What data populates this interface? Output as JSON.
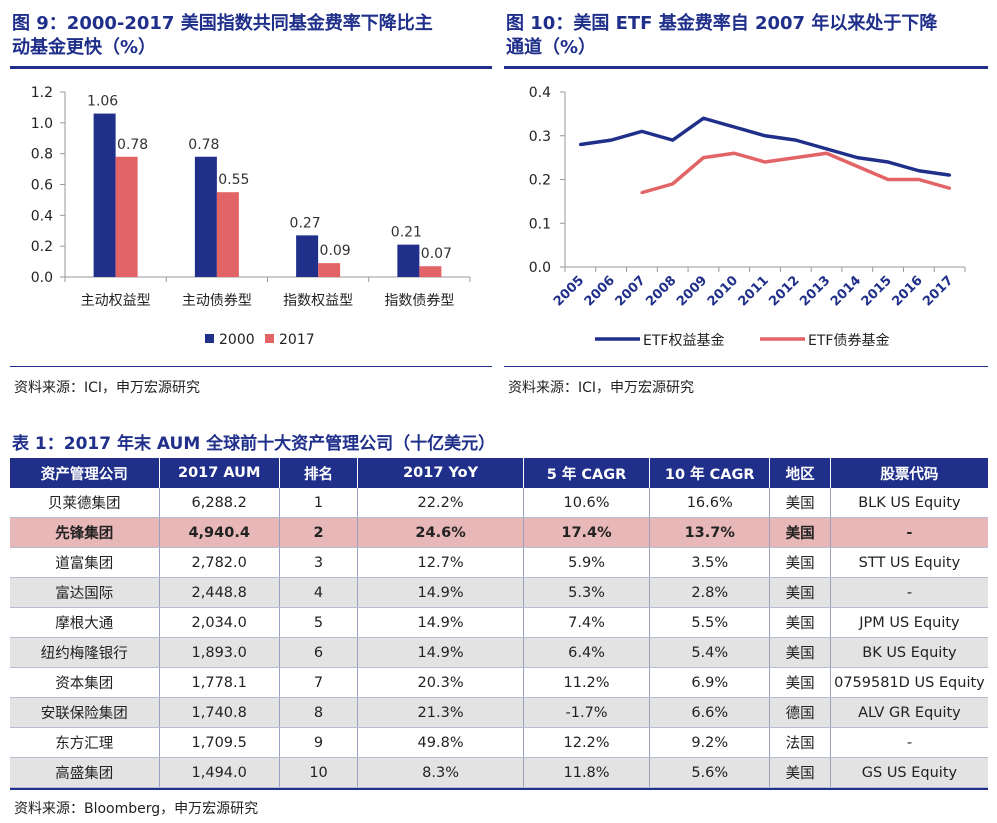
{
  "fig9": {
    "title_line1": "图 9：2000-2017 美国指数共同基金费率下降比主",
    "title_line2": "动基金更快（%）",
    "source": "资料来源：ICI，申万宏源研究"
  },
  "fig10": {
    "title_line1": "图 10：美国 ETF 基金费率自 2007 年以来处于下降",
    "title_line2": "通道（%）",
    "source": "资料来源：ICI，申万宏源研究"
  },
  "chart_data": [
    {
      "type": "bar",
      "categories": [
        "主动权益型",
        "主动债券型",
        "指数权益型",
        "指数债券型"
      ],
      "series": [
        {
          "name": "2000",
          "values": [
            1.06,
            0.78,
            0.27,
            0.21
          ],
          "color": "#1f2f8a"
        },
        {
          "name": "2017",
          "values": [
            0.78,
            0.55,
            0.09,
            0.07
          ],
          "color": "#e36466"
        }
      ],
      "ylim": [
        0,
        1.2
      ],
      "yticks": [
        "0.0",
        "0.2",
        "0.4",
        "0.6",
        "0.8",
        "1.0",
        "1.2"
      ],
      "legend": "bottom",
      "grid": false
    },
    {
      "type": "line",
      "x": [
        "2005",
        "2006",
        "2007",
        "2008",
        "2009",
        "2010",
        "2011",
        "2012",
        "2013",
        "2014",
        "2015",
        "2016",
        "2017"
      ],
      "series": [
        {
          "name": "ETF权益基金",
          "values": [
            0.28,
            0.29,
            0.31,
            0.29,
            0.34,
            0.32,
            0.3,
            0.29,
            0.27,
            0.25,
            0.24,
            0.22,
            0.21
          ],
          "color": "#1f2f8a"
        },
        {
          "name": "ETF债券基金",
          "values": [
            null,
            null,
            0.17,
            0.19,
            0.25,
            0.26,
            0.24,
            0.25,
            0.26,
            0.23,
            0.2,
            0.2,
            0.18
          ],
          "color": "#e36466"
        }
      ],
      "ylim": [
        0,
        0.4
      ],
      "yticks": [
        "0.0",
        "0.1",
        "0.2",
        "0.3",
        "0.4"
      ],
      "legend": "bottom",
      "grid": false
    }
  ],
  "table": {
    "title": "表 1：2017 年末 AUM 全球前十大资产管理公司（十亿美元）",
    "headers": [
      "资产管理公司",
      "2017 AUM",
      "排名",
      "2017 YoY",
      "5 年 CAGR",
      "10 年 CAGR",
      "地区",
      "股票代码"
    ],
    "rows": [
      [
        "贝莱德集团",
        "6,288.2",
        "1",
        "22.2%",
        "10.6%",
        "16.6%",
        "美国",
        "BLK US Equity"
      ],
      [
        "先锋集团",
        "4,940.4",
        "2",
        "24.6%",
        "17.4%",
        "13.7%",
        "美国",
        "-"
      ],
      [
        "道富集团",
        "2,782.0",
        "3",
        "12.7%",
        "5.9%",
        "3.5%",
        "美国",
        "STT US Equity"
      ],
      [
        "富达国际",
        "2,448.8",
        "4",
        "14.9%",
        "5.3%",
        "2.8%",
        "美国",
        "-"
      ],
      [
        "摩根大通",
        "2,034.0",
        "5",
        "14.9%",
        "7.4%",
        "5.5%",
        "美国",
        "JPM US Equity"
      ],
      [
        "纽约梅隆银行",
        "1,893.0",
        "6",
        "14.9%",
        "6.4%",
        "5.4%",
        "美国",
        "BK US Equity"
      ],
      [
        "资本集团",
        "1,778.1",
        "7",
        "20.3%",
        "11.2%",
        "6.9%",
        "美国",
        "0759581D US Equity"
      ],
      [
        "安联保险集团",
        "1,740.8",
        "8",
        "21.3%",
        "-1.7%",
        "6.6%",
        "德国",
        "ALV GR Equity"
      ],
      [
        "东方汇理",
        "1,709.5",
        "9",
        "49.8%",
        "12.2%",
        "9.2%",
        "法国",
        "-"
      ],
      [
        "高盛集团",
        "1,494.0",
        "10",
        "8.3%",
        "11.8%",
        "5.6%",
        "美国",
        "GS US Equity"
      ]
    ],
    "source": "资料来源：Bloomberg，申万宏源研究"
  }
}
